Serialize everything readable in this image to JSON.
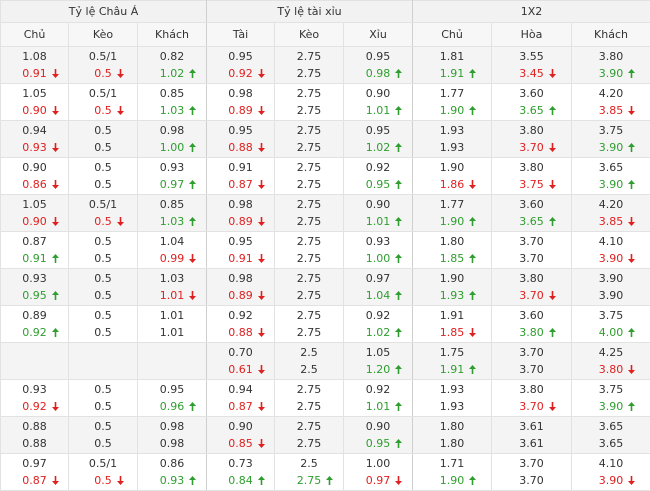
{
  "header": {
    "groups": [
      "Tỷ lệ Châu Á",
      "Tỷ lệ tài xỉu",
      "1X2"
    ],
    "columns": [
      "Chủ",
      "Kèo",
      "Khách",
      "Tài",
      "Kèo",
      "Xỉu",
      "Chủ",
      "Hòa",
      "Khách"
    ]
  },
  "rows": [
    {
      "cells": [
        {
          "open": "1.08",
          "now": "0.91",
          "trend": "down"
        },
        {
          "open": "0.5/1",
          "now": "0.5",
          "trend": "down"
        },
        {
          "open": "0.82",
          "now": "1.02",
          "trend": "up"
        },
        {
          "open": "0.95",
          "now": "0.92",
          "trend": "down"
        },
        {
          "open": "2.75",
          "now": "2.75"
        },
        {
          "open": "0.95",
          "now": "0.98",
          "trend": "up"
        },
        {
          "open": "1.81",
          "now": "1.91",
          "trend": "up"
        },
        {
          "open": "3.55",
          "now": "3.45",
          "trend": "down"
        },
        {
          "open": "3.80",
          "now": "3.90",
          "trend": "up"
        }
      ]
    },
    {
      "cells": [
        {
          "open": "1.05",
          "now": "0.90",
          "trend": "down"
        },
        {
          "open": "0.5/1",
          "now": "0.5",
          "trend": "down"
        },
        {
          "open": "0.85",
          "now": "1.03",
          "trend": "up"
        },
        {
          "open": "0.98",
          "now": "0.89",
          "trend": "down"
        },
        {
          "open": "2.75",
          "now": "2.75"
        },
        {
          "open": "0.90",
          "now": "1.01",
          "trend": "up"
        },
        {
          "open": "1.77",
          "now": "1.90",
          "trend": "up"
        },
        {
          "open": "3.60",
          "now": "3.65",
          "trend": "up"
        },
        {
          "open": "4.20",
          "now": "3.85",
          "trend": "down"
        }
      ]
    },
    {
      "cells": [
        {
          "open": "0.94",
          "now": "0.93",
          "trend": "down"
        },
        {
          "open": "0.5",
          "now": "0.5"
        },
        {
          "open": "0.98",
          "now": "1.00",
          "trend": "up"
        },
        {
          "open": "0.95",
          "now": "0.88",
          "trend": "down"
        },
        {
          "open": "2.75",
          "now": "2.75"
        },
        {
          "open": "0.95",
          "now": "1.02",
          "trend": "up"
        },
        {
          "open": "1.93",
          "now": "1.93"
        },
        {
          "open": "3.80",
          "now": "3.70",
          "trend": "down"
        },
        {
          "open": "3.75",
          "now": "3.90",
          "trend": "up"
        }
      ]
    },
    {
      "cells": [
        {
          "open": "0.90",
          "now": "0.86",
          "trend": "down"
        },
        {
          "open": "0.5",
          "now": "0.5"
        },
        {
          "open": "0.93",
          "now": "0.97",
          "trend": "up"
        },
        {
          "open": "0.91",
          "now": "0.87",
          "trend": "down"
        },
        {
          "open": "2.75",
          "now": "2.75"
        },
        {
          "open": "0.92",
          "now": "0.95",
          "trend": "up"
        },
        {
          "open": "1.90",
          "now": "1.86",
          "trend": "down"
        },
        {
          "open": "3.80",
          "now": "3.75",
          "trend": "down"
        },
        {
          "open": "3.65",
          "now": "3.90",
          "trend": "up"
        }
      ]
    },
    {
      "cells": [
        {
          "open": "1.05",
          "now": "0.90",
          "trend": "down"
        },
        {
          "open": "0.5/1",
          "now": "0.5",
          "trend": "down"
        },
        {
          "open": "0.85",
          "now": "1.03",
          "trend": "up"
        },
        {
          "open": "0.98",
          "now": "0.89",
          "trend": "down"
        },
        {
          "open": "2.75",
          "now": "2.75"
        },
        {
          "open": "0.90",
          "now": "1.01",
          "trend": "up"
        },
        {
          "open": "1.77",
          "now": "1.90",
          "trend": "up"
        },
        {
          "open": "3.60",
          "now": "3.65",
          "trend": "up"
        },
        {
          "open": "4.20",
          "now": "3.85",
          "trend": "down"
        }
      ]
    },
    {
      "cells": [
        {
          "open": "0.87",
          "now": "0.91",
          "trend": "up"
        },
        {
          "open": "0.5",
          "now": "0.5"
        },
        {
          "open": "1.04",
          "now": "0.99",
          "trend": "down"
        },
        {
          "open": "0.95",
          "now": "0.91",
          "trend": "down"
        },
        {
          "open": "2.75",
          "now": "2.75"
        },
        {
          "open": "0.93",
          "now": "1.00",
          "trend": "up"
        },
        {
          "open": "1.80",
          "now": "1.85",
          "trend": "up"
        },
        {
          "open": "3.70",
          "now": "3.70"
        },
        {
          "open": "4.10",
          "now": "3.90",
          "trend": "down"
        }
      ]
    },
    {
      "cells": [
        {
          "open": "0.93",
          "now": "0.95",
          "trend": "up"
        },
        {
          "open": "0.5",
          "now": "0.5"
        },
        {
          "open": "1.03",
          "now": "1.01",
          "trend": "down"
        },
        {
          "open": "0.98",
          "now": "0.89",
          "trend": "down"
        },
        {
          "open": "2.75",
          "now": "2.75"
        },
        {
          "open": "0.97",
          "now": "1.04",
          "trend": "up"
        },
        {
          "open": "1.90",
          "now": "1.93",
          "trend": "up"
        },
        {
          "open": "3.80",
          "now": "3.70",
          "trend": "down"
        },
        {
          "open": "3.90",
          "now": "3.90"
        }
      ]
    },
    {
      "cells": [
        {
          "open": "0.89",
          "now": "0.92",
          "trend": "up"
        },
        {
          "open": "0.5",
          "now": "0.5"
        },
        {
          "open": "1.01",
          "now": "1.01"
        },
        {
          "open": "0.92",
          "now": "0.88",
          "trend": "down"
        },
        {
          "open": "2.75",
          "now": "2.75"
        },
        {
          "open": "0.92",
          "now": "1.02",
          "trend": "up"
        },
        {
          "open": "1.91",
          "now": "1.85",
          "trend": "down"
        },
        {
          "open": "3.60",
          "now": "3.80",
          "trend": "up"
        },
        {
          "open": "3.75",
          "now": "4.00",
          "trend": "up"
        }
      ]
    },
    {
      "cells": [
        null,
        null,
        null,
        {
          "open": "0.70",
          "now": "0.61",
          "trend": "down"
        },
        {
          "open": "2.5",
          "now": "2.5"
        },
        {
          "open": "1.05",
          "now": "1.20",
          "trend": "up"
        },
        {
          "open": "1.75",
          "now": "1.91",
          "trend": "up"
        },
        {
          "open": "3.70",
          "now": "3.70"
        },
        {
          "open": "4.25",
          "now": "3.80",
          "trend": "down"
        }
      ]
    },
    {
      "cells": [
        {
          "open": "0.93",
          "now": "0.92",
          "trend": "down"
        },
        {
          "open": "0.5",
          "now": "0.5"
        },
        {
          "open": "0.95",
          "now": "0.96",
          "trend": "up"
        },
        {
          "open": "0.94",
          "now": "0.87",
          "trend": "down"
        },
        {
          "open": "2.75",
          "now": "2.75"
        },
        {
          "open": "0.92",
          "now": "1.01",
          "trend": "up"
        },
        {
          "open": "1.93",
          "now": "1.93"
        },
        {
          "open": "3.80",
          "now": "3.70",
          "trend": "down"
        },
        {
          "open": "3.75",
          "now": "3.90",
          "trend": "up"
        }
      ]
    },
    {
      "cells": [
        {
          "open": "0.88",
          "now": "0.88"
        },
        {
          "open": "0.5",
          "now": "0.5"
        },
        {
          "open": "0.98",
          "now": "0.98"
        },
        {
          "open": "0.90",
          "now": "0.85",
          "trend": "down"
        },
        {
          "open": "2.75",
          "now": "2.75"
        },
        {
          "open": "0.90",
          "now": "0.95",
          "trend": "up"
        },
        {
          "open": "1.80",
          "now": "1.80"
        },
        {
          "open": "3.61",
          "now": "3.61"
        },
        {
          "open": "3.65",
          "now": "3.65"
        }
      ]
    },
    {
      "cells": [
        {
          "open": "0.97",
          "now": "0.87",
          "trend": "down"
        },
        {
          "open": "0.5/1",
          "now": "0.5",
          "trend": "down"
        },
        {
          "open": "0.86",
          "now": "0.93",
          "trend": "up"
        },
        {
          "open": "0.73",
          "now": "0.84",
          "trend": "up"
        },
        {
          "open": "2.5",
          "now": "2.75",
          "trend": "up"
        },
        {
          "open": "1.00",
          "now": "0.97",
          "trend": "down"
        },
        {
          "open": "1.71",
          "now": "1.90",
          "trend": "up"
        },
        {
          "open": "3.70",
          "now": "3.70"
        },
        {
          "open": "4.10",
          "now": "3.90",
          "trend": "down"
        }
      ]
    }
  ]
}
